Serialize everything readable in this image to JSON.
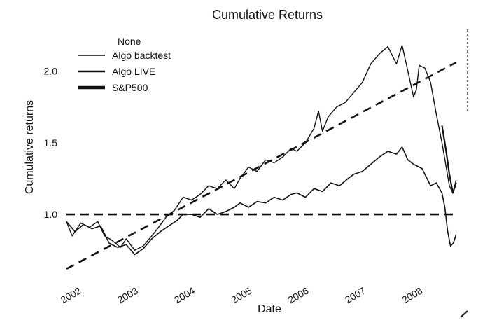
{
  "chart_data": {
    "type": "line",
    "title": "Cumulative Returns",
    "xlabel": "Date",
    "ylabel": "Cumulative returns",
    "xlim": [
      2001.95,
      2009.0
    ],
    "ylim": [
      0.6,
      2.3
    ],
    "x_ticks": [
      {
        "value": 2002,
        "label": "2002"
      },
      {
        "value": 2003,
        "label": "2003"
      },
      {
        "value": 2004,
        "label": "2004"
      },
      {
        "value": 2005,
        "label": "2005"
      },
      {
        "value": 2006,
        "label": "2006"
      },
      {
        "value": 2007,
        "label": "2007"
      },
      {
        "value": 2008,
        "label": "2008"
      }
    ],
    "y_ticks": [
      {
        "value": 1.0,
        "label": "1.0"
      },
      {
        "value": 1.5,
        "label": "1.5"
      },
      {
        "value": 2.0,
        "label": "2.0"
      }
    ],
    "legend": {
      "title": "None",
      "placement": "top-left",
      "entries": [
        "Algo backtest",
        "Algo LIVE",
        "S&P500"
      ]
    },
    "grid": false,
    "series": [
      {
        "name": "Algo backtest",
        "x": [
          2001.95,
          2002.05,
          2002.2,
          2002.35,
          2002.5,
          2002.62,
          2002.75,
          2002.9,
          2003.0,
          2003.15,
          2003.3,
          2003.45,
          2003.55,
          2003.7,
          2003.85,
          2004.0,
          2004.15,
          2004.3,
          2004.45,
          2004.6,
          2004.75,
          2004.9,
          2005.0,
          2005.15,
          2005.3,
          2005.45,
          2005.6,
          2005.75,
          2005.9,
          2006.0,
          2006.15,
          2006.3,
          2006.38,
          2006.45,
          2006.55,
          2006.7,
          2006.85,
          2007.0,
          2007.15,
          2007.3,
          2007.45,
          2007.6,
          2007.75,
          2007.85,
          2007.95,
          2008.05,
          2008.1,
          2008.15,
          2008.25,
          2008.35,
          2008.45,
          2008.55,
          2008.62,
          2008.68,
          2008.74,
          2008.8
        ],
        "y": [
          0.95,
          0.85,
          0.94,
          0.91,
          0.95,
          0.85,
          0.82,
          0.77,
          0.83,
          0.75,
          0.78,
          0.85,
          0.9,
          0.98,
          1.03,
          1.12,
          1.1,
          1.14,
          1.2,
          1.18,
          1.24,
          1.18,
          1.25,
          1.33,
          1.3,
          1.38,
          1.36,
          1.4,
          1.46,
          1.44,
          1.5,
          1.6,
          1.72,
          1.58,
          1.68,
          1.75,
          1.78,
          1.85,
          1.92,
          2.05,
          2.12,
          2.17,
          2.05,
          2.18,
          2.0,
          1.82,
          1.87,
          2.04,
          2.02,
          1.92,
          1.7,
          1.5,
          1.34,
          1.2,
          1.15,
          1.24
        ]
      },
      {
        "name": "Algo LIVE",
        "x": [
          2008.55,
          2008.62,
          2008.68,
          2008.74,
          2008.8
        ],
        "y": [
          1.62,
          1.45,
          1.28,
          1.15,
          1.22
        ]
      },
      {
        "name": "S&P500",
        "x": [
          2001.95,
          2002.1,
          2002.25,
          2002.4,
          2002.55,
          2002.7,
          2002.85,
          2003.0,
          2003.15,
          2003.3,
          2003.45,
          2003.6,
          2003.75,
          2003.9,
          2004.0,
          2004.15,
          2004.3,
          2004.45,
          2004.6,
          2004.75,
          2004.9,
          2005.0,
          2005.15,
          2005.3,
          2005.45,
          2005.6,
          2005.75,
          2005.9,
          2006.0,
          2006.15,
          2006.3,
          2006.45,
          2006.6,
          2006.75,
          2006.9,
          2007.0,
          2007.15,
          2007.3,
          2007.45,
          2007.6,
          2007.75,
          2007.85,
          2007.95,
          2008.05,
          2008.2,
          2008.35,
          2008.45,
          2008.55,
          2008.6,
          2008.65,
          2008.7,
          2008.75,
          2008.8
        ],
        "y": [
          0.95,
          0.88,
          0.93,
          0.9,
          0.92,
          0.8,
          0.77,
          0.79,
          0.72,
          0.76,
          0.83,
          0.88,
          0.92,
          0.96,
          1.0,
          1.0,
          0.98,
          1.04,
          1.0,
          1.02,
          1.05,
          1.08,
          1.05,
          1.09,
          1.08,
          1.12,
          1.1,
          1.14,
          1.15,
          1.12,
          1.18,
          1.16,
          1.22,
          1.2,
          1.25,
          1.28,
          1.3,
          1.35,
          1.4,
          1.44,
          1.42,
          1.47,
          1.38,
          1.35,
          1.32,
          1.2,
          1.22,
          1.15,
          1.05,
          0.88,
          0.78,
          0.8,
          0.86
        ]
      },
      {
        "name": "",
        "style": "dashed",
        "x": [
          2001.95,
          2008.8
        ],
        "y": [
          0.62,
          2.06
        ]
      },
      {
        "name": "",
        "style": "dashed",
        "x": [
          2001.95,
          2008.8
        ],
        "y": [
          1.0,
          1.0
        ]
      }
    ]
  }
}
